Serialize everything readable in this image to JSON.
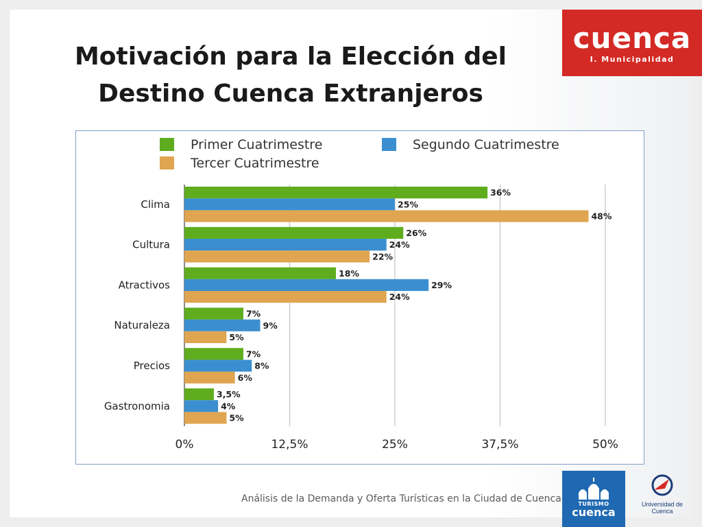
{
  "slide": {
    "title_line1": "Motivación para la Elección del",
    "title_line2": "Destino Cuenca Extranjeros",
    "footer": "Análisis de la Demanda y Oferta Turísticas en la Ciudad de Cuenca",
    "logo_cuenca_word": "cuenca",
    "logo_cuenca_sub": "I. Municipalidad",
    "logo_turismo_top": "TURISMO",
    "logo_turismo_word": "cuenca",
    "logo_ucuenca": "Universidad de Cuenca"
  },
  "colors": {
    "primer": "#5fad1e",
    "segundo": "#3b8fd0",
    "tercer": "#e0a550",
    "grid": "#c8c8c8",
    "logo_red": "#d42a25",
    "logo_blue": "#1f69b2"
  },
  "chart_data": {
    "type": "bar",
    "orientation": "horizontal",
    "categories": [
      "Clima",
      "Cultura",
      "Atractivos",
      "Naturaleza",
      "Precios",
      "Gastronomia"
    ],
    "series": [
      {
        "name": "Primer Cuatrimestre",
        "values": [
          36,
          26,
          18,
          7,
          7,
          3.5
        ],
        "labels": [
          "36%",
          "26%",
          "18%",
          "7%",
          "7%",
          "3,5%"
        ]
      },
      {
        "name": "Segundo Cuatrimestre",
        "values": [
          25,
          24,
          29,
          9,
          8,
          4
        ],
        "labels": [
          "25%",
          "24%",
          "29%",
          "9%",
          "8%",
          "4%"
        ]
      },
      {
        "name": "Tercer Cuatrimestre",
        "values": [
          48,
          22,
          24,
          5,
          6,
          5
        ],
        "labels": [
          "48%",
          "22%",
          "24%",
          "5%",
          "6%",
          "5%"
        ]
      }
    ],
    "x_ticks": [
      0,
      12.5,
      25,
      37.5,
      50
    ],
    "x_tick_labels": [
      "0%",
      "12,5%",
      "25%",
      "37,5%",
      "50%"
    ],
    "xlim": [
      0,
      50
    ],
    "legend_position": "top",
    "grid": true
  }
}
